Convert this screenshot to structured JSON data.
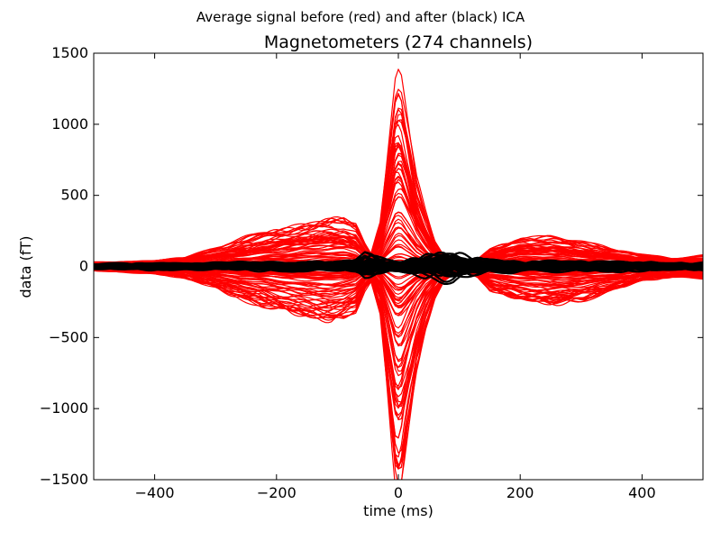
{
  "chart_data": {
    "type": "line",
    "suptitle": "Average signal before (red) and after (black) ICA",
    "title": "Magnetometers (274 channels)",
    "xlabel": "time (ms)",
    "ylabel": "data (fT)",
    "xlim": [
      -500,
      500
    ],
    "ylim": [
      -1500,
      1500
    ],
    "xticks": [
      -400,
      -200,
      0,
      200,
      400
    ],
    "yticks": [
      1500,
      1000,
      500,
      0,
      -500,
      -1000,
      -1500
    ],
    "grid": false,
    "legend": "none",
    "colors": {
      "before": "#ff0000",
      "after": "#000000"
    },
    "series": [
      {
        "channel_count": 274,
        "color": "#ff0000",
        "envelope": {
          "x": [
            -500,
            -450,
            -400,
            -350,
            -300,
            -250,
            -200,
            -150,
            -110,
            -90,
            -70,
            -55,
            -45,
            -30,
            -15,
            -5,
            0,
            5,
            15,
            30,
            45,
            60,
            75,
            90,
            110,
            130,
            150,
            200,
            250,
            300,
            350,
            400,
            450,
            500
          ],
          "max": [
            35,
            40,
            50,
            75,
            150,
            230,
            300,
            360,
            410,
            400,
            340,
            180,
            100,
            350,
            1000,
            1420,
            1480,
            1440,
            1150,
            700,
            430,
            200,
            80,
            40,
            20,
            60,
            150,
            230,
            240,
            200,
            140,
            100,
            70,
            90
          ],
          "min": [
            -30,
            -40,
            -50,
            -80,
            -150,
            -230,
            -300,
            -350,
            -370,
            -350,
            -300,
            -160,
            -100,
            -320,
            -980,
            -1420,
            -1490,
            -1450,
            -1160,
            -720,
            -420,
            -220,
            -100,
            -60,
            -30,
            -70,
            -160,
            -230,
            -260,
            -230,
            -170,
            -100,
            -70,
            -80
          ]
        }
      },
      {
        "color": "#000000",
        "envelope": {
          "x": [
            -500,
            -450,
            -400,
            -350,
            -300,
            -250,
            -200,
            -150,
            -110,
            -90,
            -70,
            -55,
            -45,
            -30,
            -15,
            -5,
            0,
            5,
            15,
            30,
            45,
            60,
            75,
            90,
            110,
            130,
            150,
            200,
            250,
            300,
            350,
            400,
            450,
            500
          ],
          "max": [
            12,
            16,
            15,
            15,
            18,
            20,
            20,
            22,
            24,
            26,
            30,
            60,
            55,
            40,
            28,
            22,
            20,
            22,
            28,
            40,
            55,
            60,
            70,
            72,
            55,
            40,
            30,
            25,
            25,
            22,
            22,
            20,
            20,
            18
          ],
          "min": [
            -12,
            -16,
            -15,
            -15,
            -18,
            -20,
            -20,
            -22,
            -24,
            -26,
            -30,
            -50,
            -45,
            -35,
            -26,
            -22,
            -20,
            -22,
            -28,
            -40,
            -55,
            -60,
            -70,
            -72,
            -55,
            -40,
            -30,
            -25,
            -25,
            -22,
            -22,
            -20,
            -20,
            -18
          ]
        }
      }
    ]
  }
}
